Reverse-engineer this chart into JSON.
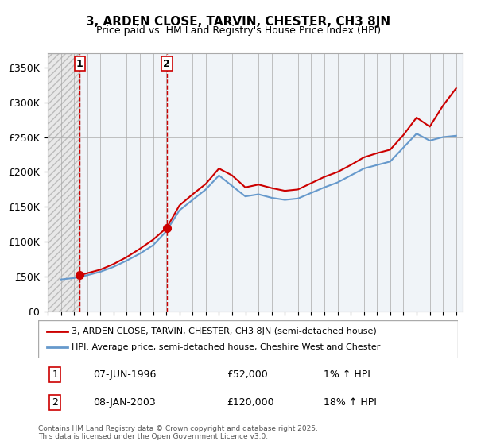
{
  "title": "3, ARDEN CLOSE, TARVIN, CHESTER, CH3 8JN",
  "subtitle": "Price paid vs. HM Land Registry's House Price Index (HPI)",
  "ylabel": "",
  "xlabel": "",
  "ylim": [
    0,
    370000
  ],
  "xlim_start": 1994.0,
  "xlim_end": 2025.5,
  "yticks": [
    0,
    50000,
    100000,
    150000,
    200000,
    250000,
    300000,
    350000
  ],
  "ytick_labels": [
    "£0",
    "£50K",
    "£100K",
    "£150K",
    "£200K",
    "£250K",
    "£300K",
    "£350K"
  ],
  "purchase1_x": 1996.44,
  "purchase1_y": 52000,
  "purchase1_label": "1",
  "purchase2_x": 2003.03,
  "purchase2_y": 120000,
  "purchase2_label": "2",
  "legend_line1": "3, ARDEN CLOSE, TARVIN, CHESTER, CH3 8JN (semi-detached house)",
  "legend_line2": "HPI: Average price, semi-detached house, Cheshire West and Chester",
  "table_row1": "1    07-JUN-1996              £52,000            1% ↑ HPI",
  "table_row2": "2    08-JAN-2003              £120,000          18% ↑ HPI",
  "footer": "Contains HM Land Registry data © Crown copyright and database right 2025.\nThis data is licensed under the Open Government Licence v3.0.",
  "line_color_red": "#cc0000",
  "line_color_blue": "#6699cc",
  "background_hatch_color": "#cccccc",
  "grid_color": "#aaaaaa",
  "hpi_line_years": [
    1995,
    1996,
    1997,
    1998,
    1999,
    2000,
    2001,
    2002,
    2003,
    2004,
    2005,
    2006,
    2007,
    2008,
    2009,
    2010,
    2011,
    2012,
    2013,
    2014,
    2015,
    2016,
    2017,
    2018,
    2019,
    2020,
    2021,
    2022,
    2023,
    2024,
    2025
  ],
  "hpi_line_values": [
    46000,
    48000,
    52000,
    57000,
    64000,
    73000,
    83000,
    95000,
    115000,
    145000,
    160000,
    175000,
    195000,
    180000,
    165000,
    168000,
    163000,
    160000,
    162000,
    170000,
    178000,
    185000,
    195000,
    205000,
    210000,
    215000,
    235000,
    255000,
    245000,
    250000,
    252000
  ],
  "red_line_years": [
    1996.44,
    1997,
    1998,
    1999,
    2000,
    2001,
    2002,
    2003.03,
    2004,
    2005,
    2006,
    2007,
    2008,
    2009,
    2010,
    2011,
    2012,
    2013,
    2014,
    2015,
    2016,
    2017,
    2018,
    2019,
    2020,
    2021,
    2022,
    2023,
    2024,
    2025
  ],
  "red_line_values": [
    52000,
    55000,
    60000,
    68000,
    78000,
    90000,
    103000,
    120000,
    152000,
    168000,
    183000,
    205000,
    195000,
    178000,
    182000,
    177000,
    173000,
    175000,
    184000,
    193000,
    200000,
    210000,
    221000,
    227000,
    232000,
    253000,
    278000,
    265000,
    295000,
    320000
  ]
}
